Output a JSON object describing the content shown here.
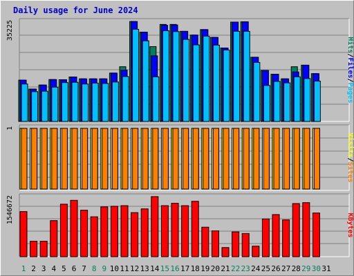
{
  "title": "Daily usage for June 2024",
  "colors": {
    "background": "#c0c0c0",
    "plot_background": "#c0c0c0",
    "grid": "#808080",
    "hits": "#00805c",
    "files": "#0000ff",
    "pages": "#00c0ff",
    "visits": "#ffff00",
    "sites": "#ff8000",
    "kbytes": "#ff0000",
    "weekend_label": "#00805c",
    "weekday_label": "#000000"
  },
  "chart_data": [
    {
      "type": "bar",
      "panel": "top",
      "y_max_label": "35225",
      "ylim": [
        0,
        35225
      ],
      "legend_text": [
        {
          "text": "Pages",
          "color": "#00c0ff"
        },
        {
          "text": "/",
          "color": "#000000"
        },
        {
          "text": "Files",
          "color": "#0000ff"
        },
        {
          "text": "/",
          "color": "#000000"
        },
        {
          "text": "Hits",
          "color": "#00805c"
        }
      ],
      "categories": [
        "1",
        "2",
        "3",
        "4",
        "5",
        "6",
        "7",
        "8",
        "9",
        "10",
        "11",
        "12",
        "13",
        "14",
        "15",
        "16",
        "17",
        "18",
        "19",
        "20",
        "21",
        "22",
        "23",
        "24",
        "25",
        "26",
        "27",
        "28",
        "29",
        "30"
      ],
      "series": [
        {
          "name": "Hits",
          "values": [
            14350,
            11250,
            12650,
            14550,
            14500,
            15450,
            14800,
            14800,
            14800,
            16800,
            19000,
            34700,
            31000,
            26000,
            33700,
            33700,
            31300,
            30000,
            31900,
            29200,
            25500,
            34500,
            34600,
            22300,
            17700,
            16400,
            14800,
            19000,
            19550,
            16600
          ]
        },
        {
          "name": "Files",
          "values": [
            14350,
            11250,
            12650,
            14550,
            14500,
            15450,
            14800,
            14800,
            14800,
            16800,
            17800,
            34700,
            31000,
            22800,
            33400,
            33500,
            31300,
            30000,
            31900,
            29200,
            25500,
            34500,
            34600,
            22300,
            17700,
            16400,
            14800,
            17200,
            19550,
            16600
          ]
        },
        {
          "name": "Pages",
          "values": [
            13000,
            10350,
            10500,
            11900,
            13500,
            13600,
            13000,
            13300,
            13200,
            13700,
            15600,
            32000,
            28000,
            15500,
            31500,
            31200,
            28500,
            26600,
            29600,
            26500,
            24800,
            31300,
            31300,
            20500,
            12500,
            13900,
            13400,
            15500,
            14900,
            14000
          ]
        }
      ]
    },
    {
      "type": "bar",
      "panel": "middle",
      "y_max_label": "1",
      "ylim": [
        0,
        1
      ],
      "legend_text": [
        {
          "text": "Sites",
          "color": "#ff8000"
        },
        {
          "text": "/",
          "color": "#000000"
        },
        {
          "text": "Visits",
          "color": "#ffff00"
        }
      ],
      "categories": [
        "1",
        "2",
        "3",
        "4",
        "5",
        "6",
        "7",
        "8",
        "9",
        "10",
        "11",
        "12",
        "13",
        "14",
        "15",
        "16",
        "17",
        "18",
        "19",
        "20",
        "21",
        "22",
        "23",
        "24",
        "25",
        "26",
        "27",
        "28",
        "29",
        "30"
      ],
      "series": [
        {
          "name": "Visits",
          "values": [
            1,
            1,
            1,
            1,
            1,
            1,
            1,
            1,
            1,
            1,
            1,
            1,
            1,
            1,
            1,
            1,
            1,
            1,
            1,
            1,
            1,
            1,
            1,
            1,
            1,
            1,
            1,
            1,
            1,
            1
          ]
        },
        {
          "name": "Sites",
          "values": [
            1,
            1,
            1,
            1,
            1,
            1,
            1,
            1,
            1,
            1,
            1,
            1,
            1,
            1,
            1,
            1,
            1,
            1,
            1,
            1,
            1,
            1,
            1,
            1,
            1,
            1,
            1,
            1,
            1,
            1
          ]
        }
      ]
    },
    {
      "type": "bar",
      "panel": "bottom",
      "y_max_label": "1546672",
      "ylim": [
        0,
        1546672
      ],
      "legend_text": [
        {
          "text": "KBytes",
          "color": "#ff0000"
        }
      ],
      "categories": [
        "1",
        "2",
        "3",
        "4",
        "5",
        "6",
        "7",
        "8",
        "9",
        "10",
        "11",
        "12",
        "13",
        "14",
        "15",
        "16",
        "17",
        "18",
        "19",
        "20",
        "21",
        "22",
        "23",
        "24",
        "25",
        "26",
        "27",
        "28",
        "29",
        "30"
      ],
      "series": [
        {
          "name": "KBytes",
          "values": [
            1136000,
            388000,
            388000,
            909000,
            1322000,
            1420000,
            1170000,
            1005000,
            1255000,
            1270000,
            1285000,
            1110000,
            1204000,
            1513000,
            1285000,
            1345000,
            1285000,
            1395000,
            743000,
            651000,
            230000,
            624000,
            584000,
            265000,
            950000,
            1061000,
            927000,
            1338000,
            1361000,
            1100000
          ]
        }
      ]
    }
  ],
  "x_labels": [
    {
      "text": "1",
      "weekend": true
    },
    {
      "text": "2",
      "weekend": false
    },
    {
      "text": "3",
      "weekend": false
    },
    {
      "text": "4",
      "weekend": false
    },
    {
      "text": "5",
      "weekend": false
    },
    {
      "text": "6",
      "weekend": false
    },
    {
      "text": "7",
      "weekend": false
    },
    {
      "text": "8",
      "weekend": true
    },
    {
      "text": "9",
      "weekend": true
    },
    {
      "text": "10",
      "weekend": false
    },
    {
      "text": "11",
      "weekend": false
    },
    {
      "text": "12",
      "weekend": false
    },
    {
      "text": "13",
      "weekend": false
    },
    {
      "text": "14",
      "weekend": false
    },
    {
      "text": "15",
      "weekend": true
    },
    {
      "text": "16",
      "weekend": true
    },
    {
      "text": "17",
      "weekend": false
    },
    {
      "text": "18",
      "weekend": false
    },
    {
      "text": "19",
      "weekend": false
    },
    {
      "text": "20",
      "weekend": false
    },
    {
      "text": "21",
      "weekend": false
    },
    {
      "text": "22",
      "weekend": true
    },
    {
      "text": "23",
      "weekend": true
    },
    {
      "text": "24",
      "weekend": false
    },
    {
      "text": "25",
      "weekend": false
    },
    {
      "text": "26",
      "weekend": false
    },
    {
      "text": "27",
      "weekend": false
    },
    {
      "text": "28",
      "weekend": false
    },
    {
      "text": "29",
      "weekend": true
    },
    {
      "text": "30",
      "weekend": true
    },
    {
      "text": "31",
      "weekend": false
    }
  ]
}
